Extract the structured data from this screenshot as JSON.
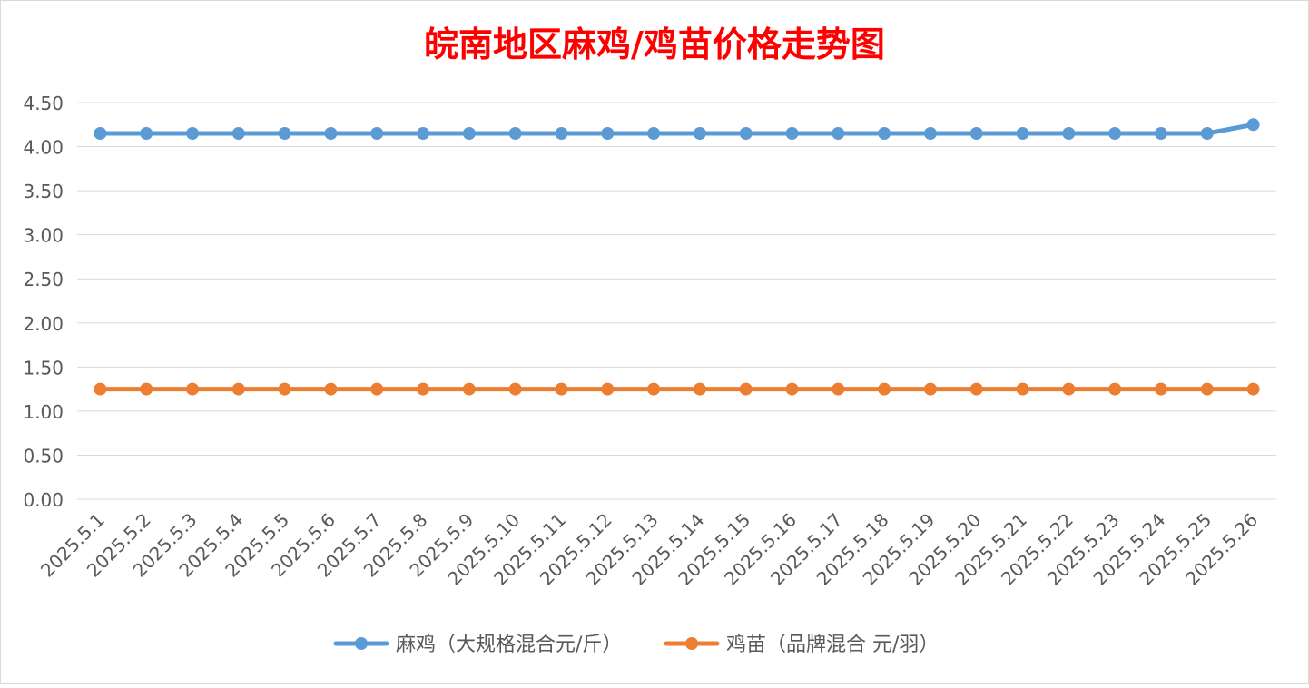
{
  "chart_data": {
    "type": "line",
    "title": "皖南地区麻鸡/鸡苗价格走势图",
    "categories": [
      "2025.5.1",
      "2025.5.2",
      "2025.5.3",
      "2025.5.4",
      "2025.5.5",
      "2025.5.6",
      "2025.5.7",
      "2025.5.8",
      "2025.5.9",
      "2025.5.10",
      "2025.5.11",
      "2025.5.12",
      "2025.5.13",
      "2025.5.14",
      "2025.5.15",
      "2025.5.16",
      "2025.5.17",
      "2025.5.18",
      "2025.5.19",
      "2025.5.20",
      "2025.5.21",
      "2025.5.22",
      "2025.5.23",
      "2025.5.24",
      "2025.5.25",
      "2025.5.26"
    ],
    "y_ticks": [
      "0.00",
      "0.50",
      "1.00",
      "1.50",
      "2.00",
      "2.50",
      "3.00",
      "3.50",
      "4.00",
      "4.50"
    ],
    "ylim": [
      0,
      4.5
    ],
    "grid": true,
    "legend_position": "bottom",
    "series": [
      {
        "name": "麻鸡（大规格混合元/斤）",
        "color": "#5B9BD5",
        "values": [
          4.15,
          4.15,
          4.15,
          4.15,
          4.15,
          4.15,
          4.15,
          4.15,
          4.15,
          4.15,
          4.15,
          4.15,
          4.15,
          4.15,
          4.15,
          4.15,
          4.15,
          4.15,
          4.15,
          4.15,
          4.15,
          4.15,
          4.15,
          4.15,
          4.15,
          4.25
        ]
      },
      {
        "name": "鸡苗（品牌混合 元/羽）",
        "color": "#ED7D31",
        "values": [
          1.25,
          1.25,
          1.25,
          1.25,
          1.25,
          1.25,
          1.25,
          1.25,
          1.25,
          1.25,
          1.25,
          1.25,
          1.25,
          1.25,
          1.25,
          1.25,
          1.25,
          1.25,
          1.25,
          1.25,
          1.25,
          1.25,
          1.25,
          1.25,
          1.25,
          1.25
        ]
      }
    ],
    "title_color": "#FF0000"
  }
}
